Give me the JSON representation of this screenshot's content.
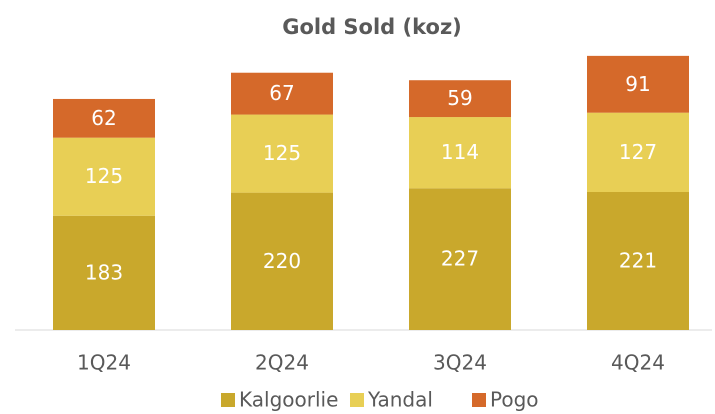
{
  "chart_data": {
    "type": "stacked_bar",
    "title": "Gold Sold (koz)",
    "categories": [
      "1Q24",
      "2Q24",
      "3Q24",
      "4Q24"
    ],
    "series": [
      {
        "name": "Kalgoorlie",
        "color": "#c9a82c",
        "values": [
          183,
          220,
          227,
          221
        ]
      },
      {
        "name": "Yandal",
        "color": "#e8cf55",
        "values": [
          125,
          125,
          114,
          127
        ]
      },
      {
        "name": "Pogo",
        "color": "#d5692a",
        "values": [
          62,
          67,
          59,
          91
        ]
      }
    ],
    "ylim": [
      0,
      450
    ]
  }
}
